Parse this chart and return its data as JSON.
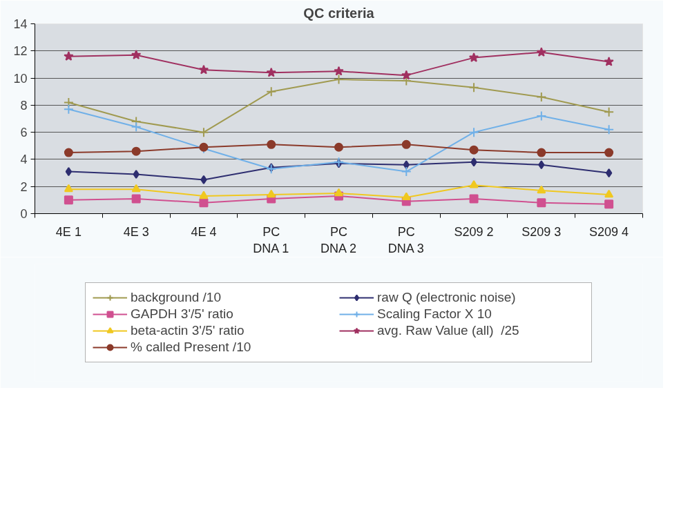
{
  "chart_data": {
    "type": "line",
    "title": "QC criteria",
    "categories": [
      "4E 1",
      "4E 3",
      "4E 4",
      "PC\nDNA 1",
      "PC\nDNA 2",
      "PC\nDNA 3",
      "S209 2",
      "S209 3",
      "S209 4"
    ],
    "ylim": [
      0,
      14
    ],
    "yticks": [
      0,
      2,
      4,
      6,
      8,
      10,
      12,
      14
    ],
    "grid": "y",
    "legend": "bottom",
    "series": [
      {
        "name": "background /10",
        "color": "#a09a50",
        "marker": "cross",
        "values": [
          8.2,
          6.8,
          6.0,
          9.0,
          9.9,
          9.8,
          9.3,
          8.6,
          7.5
        ]
      },
      {
        "name": "raw Q (electronic noise)",
        "color": "#2e2e70",
        "marker": "diamond",
        "values": [
          3.1,
          2.9,
          2.5,
          3.4,
          3.7,
          3.6,
          3.8,
          3.6,
          3.0
        ]
      },
      {
        "name": "GAPDH 3'/5' ratio",
        "color": "#d05090",
        "marker": "square",
        "values": [
          1.0,
          1.1,
          0.8,
          1.1,
          1.3,
          0.9,
          1.1,
          0.8,
          0.7
        ]
      },
      {
        "name": "Scaling Factor X 10",
        "color": "#70b0e8",
        "marker": "cross",
        "values": [
          7.7,
          6.4,
          4.8,
          3.3,
          3.8,
          3.1,
          6.0,
          7.2,
          6.2
        ]
      },
      {
        "name": "beta-actin 3'/5' ratio",
        "color": "#f0c820",
        "marker": "triangle",
        "values": [
          1.8,
          1.8,
          1.3,
          1.4,
          1.5,
          1.2,
          2.1,
          1.7,
          1.4
        ]
      },
      {
        "name": "avg. Raw Value (all)  /25",
        "color": "#a03060",
        "marker": "star",
        "values": [
          11.6,
          11.7,
          10.6,
          10.4,
          10.5,
          10.2,
          11.5,
          11.9,
          11.2
        ]
      },
      {
        "name": "% called Present /10",
        "color": "#8b3a2a",
        "marker": "circle",
        "values": [
          4.5,
          4.6,
          4.9,
          5.1,
          4.9,
          5.1,
          4.7,
          4.5,
          4.5
        ]
      }
    ]
  }
}
